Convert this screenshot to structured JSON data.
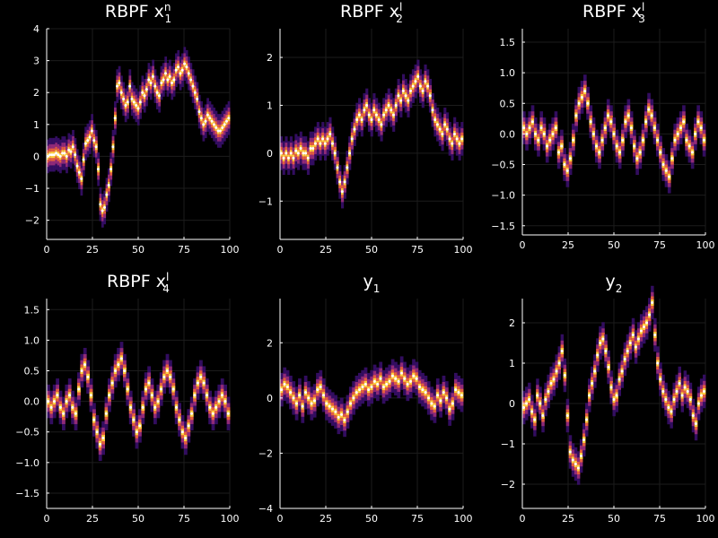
{
  "chart_data": [
    {
      "type": "heatmap",
      "title": "RBPF x",
      "title_sub": "1",
      "title_sup": "n",
      "xlim": [
        0,
        100
      ],
      "ylim": [
        -2.6,
        4.0
      ],
      "xticks": [
        0,
        25,
        50,
        75,
        100
      ],
      "yticks": [
        -2,
        -1,
        0,
        1,
        2,
        3,
        4
      ],
      "ytick_labels": [
        "−2",
        "−1",
        "0",
        "1",
        "2",
        "3",
        "4"
      ],
      "points": [
        0.0,
        0.05,
        0.05,
        0.05,
        0.1,
        0.05,
        0.0,
        0.1,
        0.1,
        0.0,
        0.2,
        0.15,
        0.3,
        0.05,
        -0.3,
        -0.5,
        -0.7,
        -0.1,
        0.4,
        0.5,
        0.6,
        0.8,
        0.5,
        0.3,
        -0.4,
        -1.5,
        -1.7,
        -1.6,
        -1.2,
        -0.9,
        -0.4,
        0.3,
        1.2,
        2.2,
        2.3,
        2.0,
        1.8,
        1.6,
        1.7,
        2.2,
        1.8,
        1.7,
        1.6,
        1.5,
        1.7,
        2.0,
        1.9,
        2.1,
        2.4,
        2.3,
        2.5,
        2.2,
        2.0,
        1.9,
        2.3,
        2.4,
        2.6,
        2.4,
        2.5,
        2.3,
        2.4,
        2.7,
        2.8,
        2.6,
        2.7,
        2.9,
        2.8,
        2.6,
        2.4,
        2.2,
        2.0,
        1.8,
        1.4,
        1.2,
        1.0,
        1.1,
        1.3,
        1.2,
        1.1,
        1.0,
        0.9,
        0.8,
        0.8,
        0.9,
        1.0,
        1.1,
        1.2
      ]
    },
    {
      "type": "heatmap",
      "title": "RBPF x",
      "title_sub": "2",
      "title_sup": "l",
      "xlim": [
        0,
        100
      ],
      "ylim": [
        -1.8,
        2.6
      ],
      "xticks": [
        0,
        25,
        50,
        75,
        100
      ],
      "yticks": [
        -1,
        0,
        1,
        2
      ],
      "ytick_labels": [
        "−1",
        "0",
        "1",
        "2"
      ],
      "points": [
        0.0,
        -0.1,
        0.0,
        -0.1,
        0.0,
        -0.1,
        0.05,
        0.0,
        0.1,
        0.0,
        0.0,
        -0.1,
        0.1,
        0.1,
        0.2,
        0.3,
        0.2,
        0.3,
        0.2,
        0.3,
        0.4,
        0.2,
        0.0,
        -0.3,
        -0.6,
        -0.8,
        -0.6,
        -0.3,
        0.0,
        0.3,
        0.5,
        0.7,
        0.8,
        0.7,
        0.9,
        1.0,
        0.8,
        0.7,
        0.9,
        0.8,
        0.7,
        0.6,
        0.8,
        0.9,
        1.0,
        0.9,
        0.8,
        1.0,
        1.2,
        1.1,
        1.3,
        1.2,
        1.1,
        1.3,
        1.4,
        1.5,
        1.6,
        1.4,
        1.3,
        1.5,
        1.4,
        1.2,
        0.9,
        0.7,
        0.6,
        0.5,
        0.4,
        0.6,
        0.5,
        0.3,
        0.2,
        0.4,
        0.3,
        0.2,
        0.3
      ]
    },
    {
      "type": "heatmap",
      "title": "RBPF x",
      "title_sub": "3",
      "title_sup": "l",
      "xlim": [
        0,
        100
      ],
      "ylim": [
        -1.65,
        1.72
      ],
      "xticks": [
        0,
        25,
        50,
        75,
        100
      ],
      "yticks": [
        -1.5,
        -1.0,
        -0.5,
        0.0,
        0.5,
        1.0,
        1.5
      ],
      "ytick_labels": [
        "−1.5",
        "−1.0",
        "−0.5",
        "0.0",
        "0.5",
        "1.0",
        "1.5"
      ],
      "points": [
        0.1,
        0.0,
        0.1,
        0.2,
        0.0,
        -0.1,
        0.1,
        0.0,
        -0.2,
        -0.1,
        0.0,
        0.1,
        -0.3,
        -0.2,
        -0.5,
        -0.6,
        -0.4,
        -0.1,
        0.3,
        0.5,
        0.6,
        0.7,
        0.5,
        0.2,
        0.0,
        -0.2,
        -0.3,
        -0.1,
        0.1,
        0.3,
        0.2,
        0.0,
        -0.2,
        -0.3,
        -0.1,
        0.2,
        0.3,
        0.1,
        -0.2,
        -0.4,
        -0.3,
        -0.1,
        0.2,
        0.4,
        0.3,
        0.1,
        -0.1,
        -0.3,
        -0.5,
        -0.6,
        -0.7,
        -0.4,
        -0.1,
        0.0,
        0.1,
        0.2,
        -0.1,
        -0.2,
        -0.3,
        0.0,
        0.2,
        0.1,
        -0.1
      ]
    },
    {
      "type": "heatmap",
      "title": "RBPF x",
      "title_sub": "4",
      "title_sup": "l",
      "xlim": [
        0,
        100
      ],
      "ylim": [
        -1.75,
        1.68
      ],
      "xticks": [
        0,
        25,
        50,
        75,
        100
      ],
      "yticks": [
        -1.5,
        -1.0,
        -0.5,
        0.0,
        0.5,
        1.0,
        1.5
      ],
      "ytick_labels": [
        "−1.5",
        "−1.0",
        "−0.5",
        "0.0",
        "0.5",
        "1.0",
        "1.5"
      ],
      "points": [
        0.0,
        -0.1,
        0.0,
        0.1,
        -0.1,
        -0.2,
        0.0,
        0.1,
        -0.1,
        -0.2,
        0.2,
        0.5,
        0.6,
        0.4,
        0.1,
        -0.3,
        -0.5,
        -0.7,
        -0.6,
        -0.2,
        0.1,
        0.3,
        0.5,
        0.6,
        0.7,
        0.5,
        0.2,
        -0.1,
        -0.3,
        -0.5,
        -0.4,
        -0.1,
        0.2,
        0.3,
        0.1,
        -0.1,
        0.0,
        0.2,
        0.4,
        0.5,
        0.4,
        0.2,
        -0.1,
        -0.3,
        -0.5,
        -0.6,
        -0.4,
        -0.2,
        0.1,
        0.3,
        0.4,
        0.3,
        0.1,
        -0.1,
        -0.2,
        -0.1,
        0.0,
        0.1,
        0.0,
        -0.2
      ]
    },
    {
      "type": "heatmap",
      "title": "y",
      "title_sub": "1",
      "title_sup": "",
      "xlim": [
        0,
        100
      ],
      "ylim": [
        -4.0,
        3.6
      ],
      "xticks": [
        0,
        25,
        50,
        75,
        100
      ],
      "yticks": [
        -4,
        -2,
        0,
        2
      ],
      "ytick_labels": [
        "−4",
        "−2",
        "0",
        "2"
      ],
      "points": [
        0.3,
        0.5,
        0.4,
        0.2,
        0.0,
        -0.2,
        0.1,
        -0.3,
        0.2,
        0.0,
        -0.2,
        -0.1,
        0.3,
        0.4,
        0.1,
        -0.2,
        -0.3,
        -0.4,
        -0.5,
        -0.7,
        -0.6,
        -0.8,
        -0.5,
        -0.2,
        0.0,
        0.2,
        0.3,
        0.4,
        0.5,
        0.3,
        0.4,
        0.6,
        0.5,
        0.7,
        0.4,
        0.5,
        0.6,
        0.8,
        0.7,
        0.6,
        0.9,
        0.7,
        0.5,
        0.6,
        0.8,
        0.7,
        0.4,
        0.3,
        0.2,
        0.0,
        -0.2,
        -0.3,
        0.1,
        -0.1,
        0.2,
        0.0,
        -0.4,
        -0.2,
        0.3,
        0.2,
        0.1
      ]
    },
    {
      "type": "heatmap",
      "title": "y",
      "title_sub": "2",
      "title_sup": "",
      "xlim": [
        0,
        100
      ],
      "ylim": [
        -2.6,
        2.6
      ],
      "xticks": [
        0,
        25,
        50,
        75,
        100
      ],
      "yticks": [
        -2,
        -1,
        0,
        1,
        2
      ],
      "ytick_labels": [
        "−2",
        "−1",
        "0",
        "1",
        "2"
      ],
      "points": [
        -0.1,
        0.0,
        0.1,
        -0.2,
        -0.4,
        0.2,
        0.0,
        -0.3,
        0.1,
        0.3,
        0.5,
        0.6,
        0.8,
        1.0,
        1.3,
        0.7,
        -0.3,
        -1.2,
        -1.4,
        -1.5,
        -1.6,
        -1.3,
        -0.9,
        -0.4,
        0.2,
        0.5,
        0.8,
        1.2,
        1.5,
        1.6,
        1.3,
        0.9,
        0.4,
        0.1,
        0.2,
        0.6,
        0.8,
        1.1,
        1.3,
        1.5,
        1.7,
        1.4,
        1.6,
        1.8,
        1.9,
        2.0,
        2.2,
        2.5,
        1.7,
        1.0,
        0.6,
        0.3,
        0.1,
        -0.1,
        -0.2,
        0.1,
        0.3,
        0.5,
        0.2,
        0.4,
        0.3,
        0.1,
        -0.3,
        -0.5,
        0.0,
        0.2,
        0.3
      ]
    }
  ]
}
